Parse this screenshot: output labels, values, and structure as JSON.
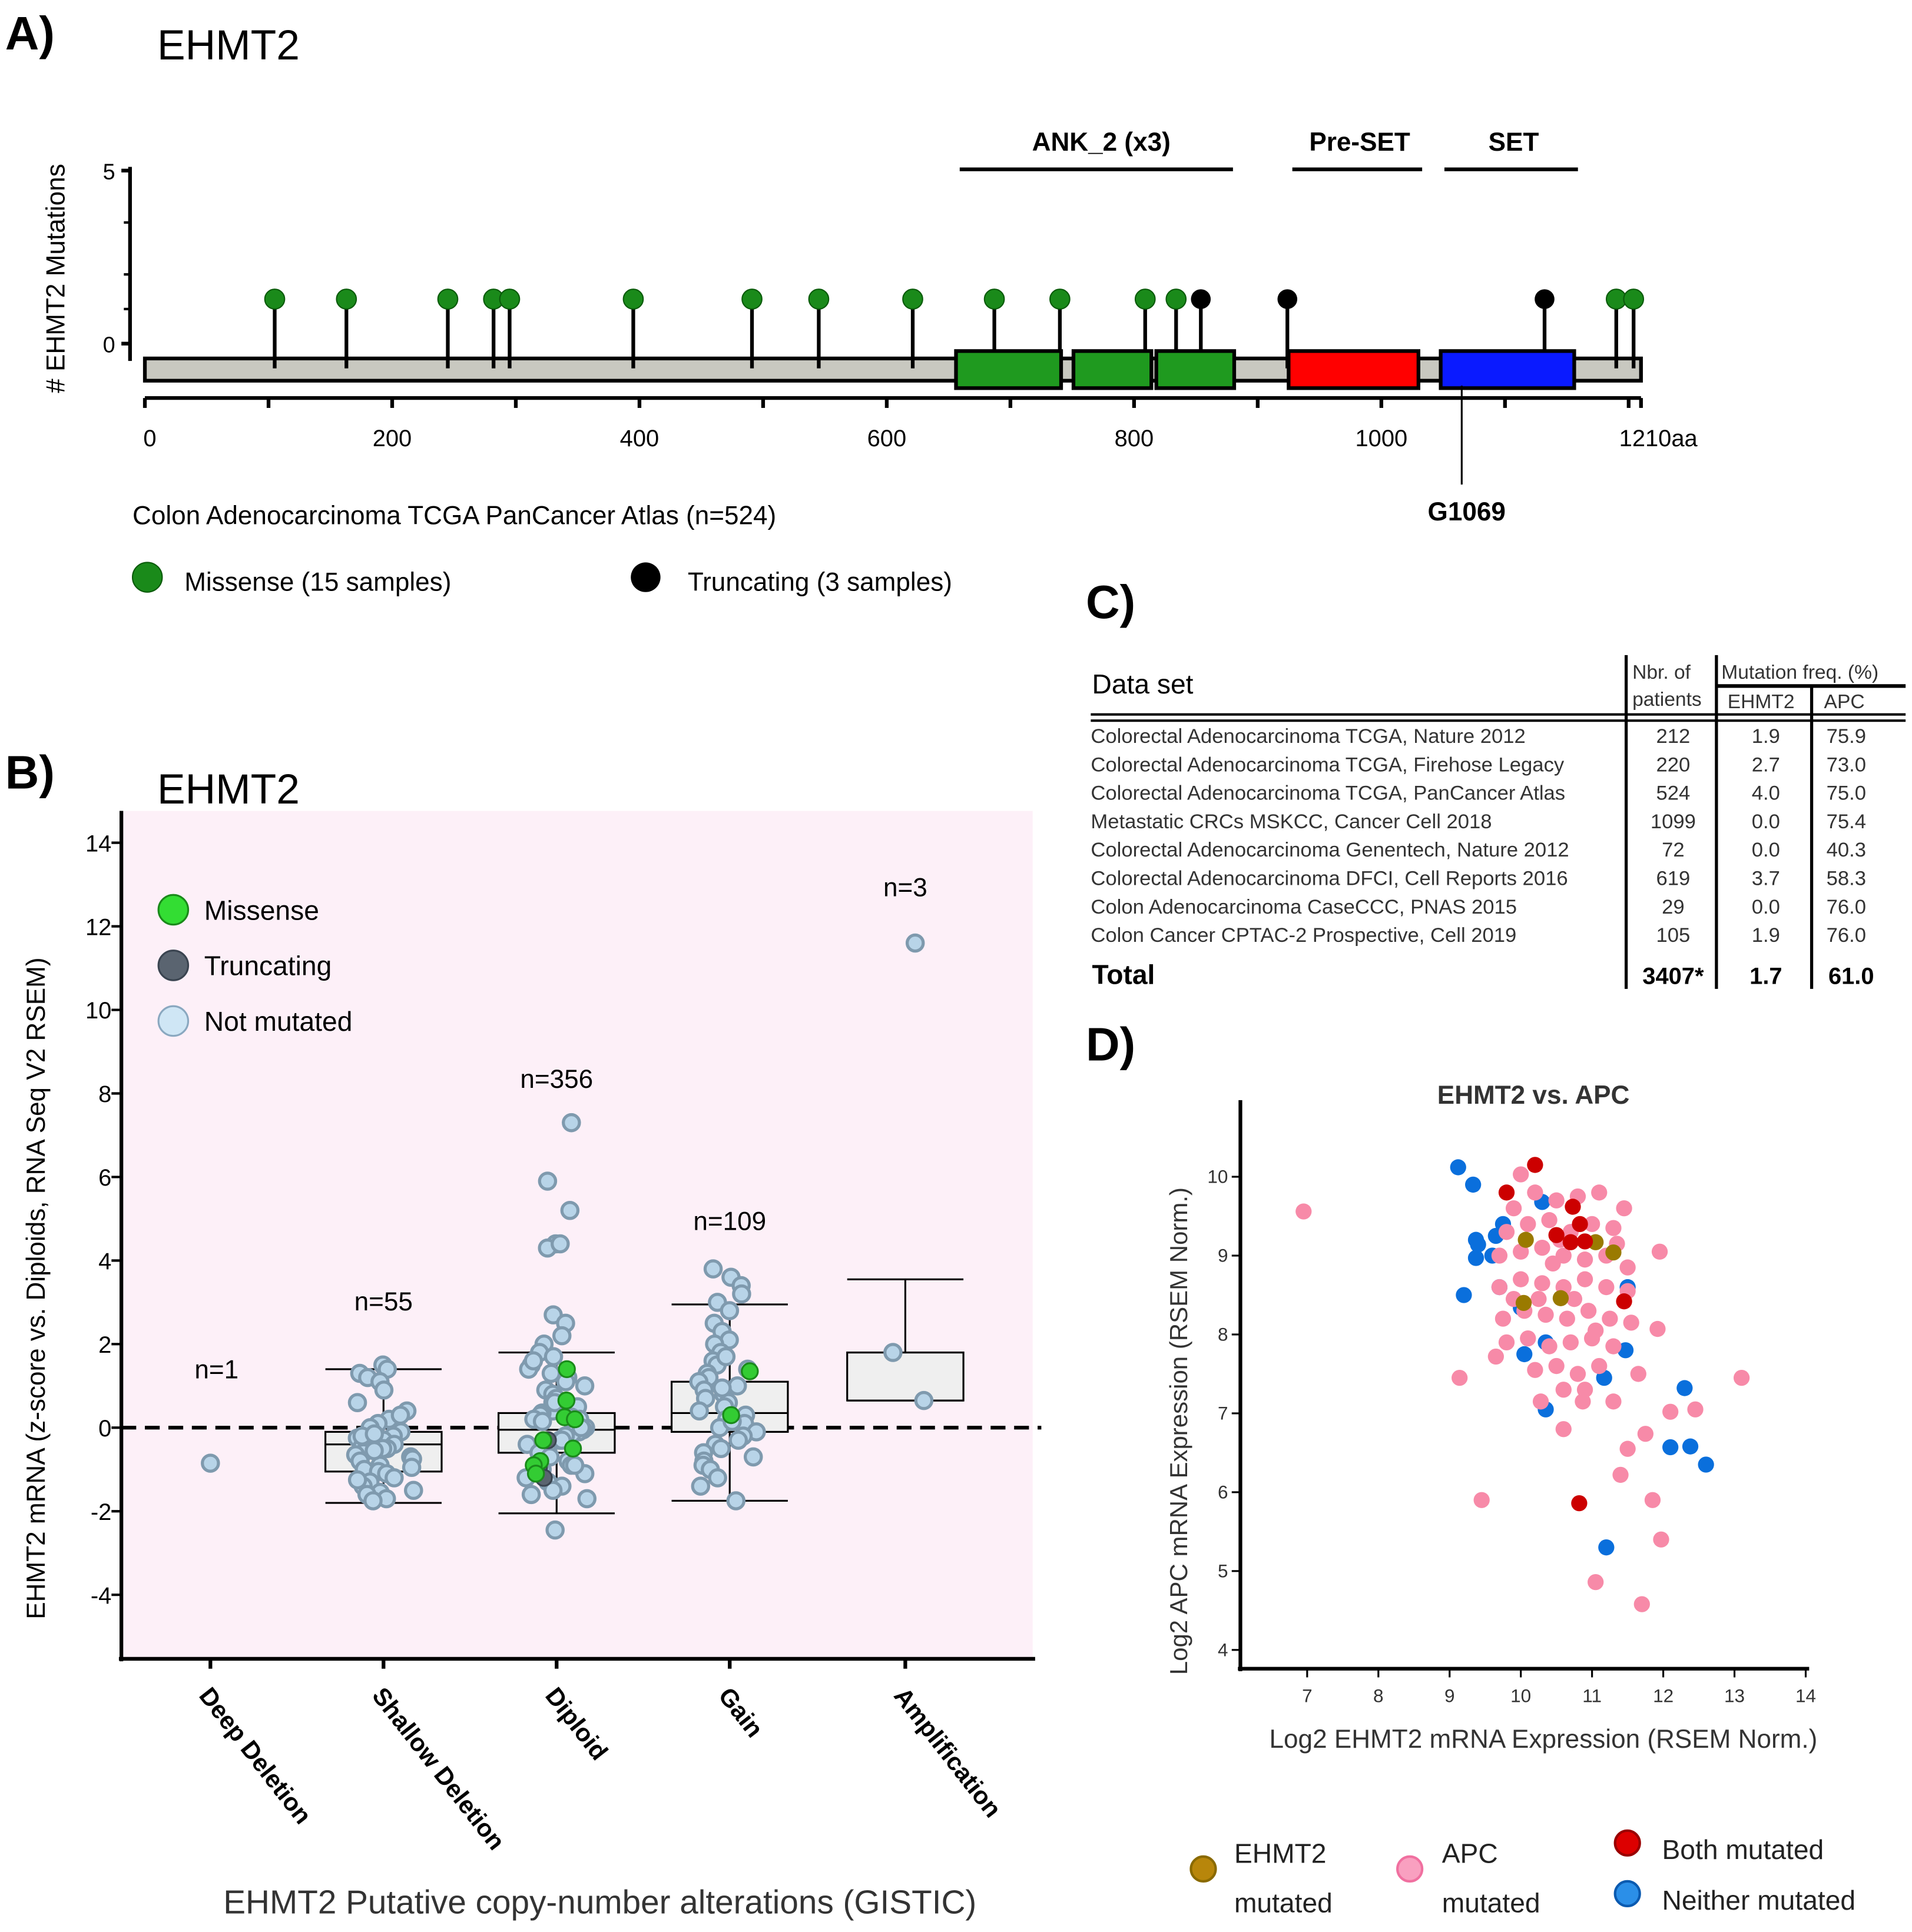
{
  "panelA": {
    "label": "A)",
    "title": "EHMT2",
    "ylabel": "# EHMT2 Mutations",
    "yticks": [
      "5",
      "0"
    ],
    "xticks": [
      0,
      200,
      400,
      600,
      800,
      1000
    ],
    "xend_label": "1210aa",
    "length": 1210,
    "domains": [
      {
        "name": "ANK_2 (x3)",
        "start": 656,
        "end": 881,
        "color": "#1f9a1f",
        "repeats": [
          [
            656,
            741
          ],
          [
            751,
            814
          ],
          [
            818,
            881
          ]
        ]
      },
      {
        "name": "Pre-SET",
        "start": 925,
        "end": 1030,
        "color": "#ff0000"
      },
      {
        "name": "SET",
        "start": 1048,
        "end": 1156,
        "color": "#0a1aff"
      }
    ],
    "missense_positions": [
      105,
      163,
      245,
      282,
      295,
      395,
      491,
      545,
      621,
      687,
      740,
      809,
      834,
      1190,
      1204
    ],
    "truncating_positions": [
      854,
      924,
      1132
    ],
    "marker": {
      "label": "G1069",
      "position": 1065
    },
    "study": "Colon Adenocarcinoma TCGA PanCancer Atlas (n=524)",
    "legend": [
      {
        "label": "Missense (15 samples)",
        "color": "#1a8a1a"
      },
      {
        "label": "Truncating (3 samples)",
        "color": "#000000"
      }
    ]
  },
  "chart_data": [
    {
      "type": "box",
      "panel": "B)",
      "title": "EHMT2",
      "ylabel": "EHMT2 mRNA (z-score vs. Diploids, RNA Seq V2 RSEM)",
      "xlabel": "EHMT2 Putative copy-number alterations (GISTIC)",
      "ylim": [
        -5.5,
        14.7
      ],
      "yticks": [
        14,
        12,
        10,
        8,
        6,
        4,
        2,
        0,
        -2,
        -4
      ],
      "legend": [
        {
          "label": "Missense",
          "color": "#33cc33"
        },
        {
          "label": "Truncating",
          "color": "#5a6470"
        },
        {
          "label": "Not mutated",
          "color": "#cfe6f5"
        }
      ],
      "categories": [
        {
          "name": "Deep Deletion",
          "n_label": "n=1",
          "box": null,
          "not_mutated": [
            -0.85
          ],
          "missense": [],
          "truncating": []
        },
        {
          "name": "Shallow Deletion",
          "n_label": "n=55",
          "box": {
            "q1": -1.05,
            "median": -0.4,
            "q3": -0.1,
            "lo": -1.8,
            "hi": 1.4
          },
          "not_mutated": [
            1.5,
            1.4,
            1.3,
            1.2,
            1.1,
            0.9,
            0.6,
            0.4,
            0.2,
            0.1,
            0,
            -0.1,
            -0.2,
            -0.25,
            -0.3,
            -0.35,
            -0.4,
            -0.45,
            -0.5,
            -0.5,
            -0.6,
            -0.65,
            -0.7,
            -0.75,
            -0.8,
            -0.9,
            -0.95,
            -1.0,
            -1.05,
            -1.1,
            -1.2,
            -1.3,
            -1.4,
            -1.5,
            -1.55,
            -1.6,
            -1.7,
            -1.75,
            -0.2,
            0.3,
            -0.15,
            -0.55,
            -1.25
          ],
          "missense": [],
          "truncating": []
        },
        {
          "name": "Diploid",
          "n_label": "n=356",
          "box": {
            "q1": -0.6,
            "median": -0.05,
            "q3": 0.35,
            "lo": -2.05,
            "hi": 1.8
          },
          "not_mutated": [
            7.3,
            5.9,
            5.2,
            4.4,
            4.3,
            4.4,
            2.7,
            2.5,
            2.2,
            2.0,
            1.8,
            1.7,
            1.5,
            1.4,
            1.3,
            1.2,
            1.1,
            1.0,
            0.9,
            0.8,
            0.7,
            0.6,
            0.5,
            0.45,
            0.4,
            0.35,
            0.3,
            0.25,
            0.2,
            0.15,
            0.1,
            0.05,
            0,
            -0.05,
            -0.1,
            -0.15,
            -0.2,
            -0.3,
            -0.4,
            -0.5,
            -0.55,
            -0.6,
            -0.7,
            -0.8,
            -0.9,
            -1.0,
            -1.1,
            -1.2,
            -1.3,
            -1.4,
            -1.5,
            -1.6,
            -1.7,
            -2.45,
            0.2,
            -0.3,
            0.6,
            1.6,
            -0.9,
            0.0
          ],
          "missense": [
            1.4,
            0.65,
            0.25,
            0.2,
            -0.3,
            -0.5,
            -0.8,
            -0.9,
            -1.1
          ],
          "truncating": [
            -0.3,
            -0.95,
            -1.2
          ]
        },
        {
          "name": "Gain",
          "n_label": "n=109",
          "box": {
            "q1": -0.1,
            "median": 0.35,
            "q3": 1.1,
            "lo": -1.75,
            "hi": 2.95
          },
          "not_mutated": [
            3.8,
            3.6,
            3.4,
            3.2,
            3.0,
            2.8,
            2.5,
            2.3,
            2.1,
            2.0,
            1.8,
            1.6,
            1.5,
            1.4,
            1.3,
            1.2,
            1.1,
            1.0,
            0.9,
            0.8,
            0.7,
            0.6,
            0.5,
            0.4,
            0.3,
            0.2,
            0.1,
            0,
            -0.1,
            -0.2,
            -0.3,
            -0.4,
            -0.5,
            -0.6,
            -0.7,
            -0.8,
            -0.9,
            -1.0,
            -1.2,
            -1.4,
            -1.75,
            1.7,
            0.95,
            0.15
          ],
          "missense": [
            1.35,
            0.3
          ],
          "truncating": []
        },
        {
          "name": "Amplification",
          "n_label": "n=3",
          "box": {
            "q1": 0.65,
            "median": 1.8,
            "q3": 1.8,
            "lo": 0.65,
            "hi": 3.55
          },
          "not_mutated": [
            11.6,
            1.8,
            0.65
          ],
          "missense": [],
          "truncating": []
        }
      ]
    },
    {
      "type": "scatter",
      "panel": "D)",
      "title": "EHMT2 vs. APC",
      "xlabel": "Log2 EHMT2 mRNA Expression (RSEM Norm.)",
      "ylabel": "Log2 APC mRNA Expression (RSEM Norm.)",
      "xlim": [
        6,
        14
      ],
      "ylim": [
        3.8,
        10.9
      ],
      "xticks": [
        7,
        8,
        9,
        10,
        11,
        12,
        13,
        14
      ],
      "yticks": [
        4,
        5,
        6,
        7,
        8,
        9,
        10
      ],
      "series": [
        {
          "name": "Neither mutated",
          "color": "#0a6fdc",
          "points": [
            [
              9.12,
              10.12
            ],
            [
              9.33,
              9.9
            ],
            [
              9.37,
              9.2
            ],
            [
              9.37,
              8.97
            ],
            [
              9.2,
              8.5
            ],
            [
              9.4,
              9.14
            ],
            [
              9.65,
              9.25
            ],
            [
              9.75,
              9.4
            ],
            [
              10.35,
              7.9
            ],
            [
              10.05,
              7.75
            ],
            [
              11.17,
              7.45
            ],
            [
              11.47,
              7.8
            ],
            [
              12.3,
              7.32
            ],
            [
              12.1,
              6.57
            ],
            [
              12.38,
              6.58
            ],
            [
              12.6,
              6.35
            ],
            [
              11.2,
              5.3
            ],
            [
              10.35,
              7.05
            ],
            [
              10.0,
              8.34
            ],
            [
              10.3,
              9.68
            ],
            [
              9.6,
              9.0
            ],
            [
              9.7,
              8.6
            ],
            [
              11.5,
              8.6
            ]
          ]
        },
        {
          "name": "APC mutated",
          "color": "#f78aa8",
          "points": [
            [
              6.95,
              9.56
            ],
            [
              9.14,
              7.45
            ],
            [
              9.45,
              5.9
            ],
            [
              11.05,
              4.86
            ],
            [
              11.7,
              4.58
            ],
            [
              11.97,
              5.4
            ],
            [
              11.85,
              5.9
            ],
            [
              13.1,
              7.45
            ],
            [
              12.45,
              7.05
            ],
            [
              12.1,
              7.02
            ],
            [
              11.4,
              6.22
            ],
            [
              11.5,
              6.55
            ],
            [
              11.75,
              6.74
            ],
            [
              11.92,
              8.07
            ],
            [
              11.95,
              9.05
            ],
            [
              10.6,
              6.8
            ],
            [
              10.28,
              7.15
            ],
            [
              10.87,
              7.15
            ],
            [
              11.3,
              7.15
            ],
            [
              11.65,
              7.5
            ],
            [
              9.65,
              7.72
            ],
            [
              10.0,
              10.03
            ],
            [
              11.45,
              9.6
            ],
            [
              9.9,
              9.6
            ],
            [
              10.2,
              9.8
            ],
            [
              10.5,
              9.7
            ],
            [
              10.8,
              9.75
            ],
            [
              11.1,
              9.8
            ],
            [
              9.8,
              9.3
            ],
            [
              10.1,
              9.4
            ],
            [
              10.4,
              9.45
            ],
            [
              10.7,
              9.3
            ],
            [
              11.0,
              9.4
            ],
            [
              11.3,
              9.35
            ],
            [
              9.7,
              9.0
            ],
            [
              10.0,
              9.05
            ],
            [
              10.3,
              9.1
            ],
            [
              10.6,
              9.0
            ],
            [
              10.9,
              8.95
            ],
            [
              11.2,
              9.0
            ],
            [
              11.5,
              8.85
            ],
            [
              9.7,
              8.6
            ],
            [
              10.0,
              8.7
            ],
            [
              10.3,
              8.65
            ],
            [
              10.6,
              8.6
            ],
            [
              10.9,
              8.7
            ],
            [
              11.2,
              8.6
            ],
            [
              11.5,
              8.55
            ],
            [
              9.75,
              8.2
            ],
            [
              10.05,
              8.3
            ],
            [
              10.35,
              8.25
            ],
            [
              10.65,
              8.2
            ],
            [
              10.95,
              8.3
            ],
            [
              11.25,
              8.2
            ],
            [
              11.55,
              8.15
            ],
            [
              9.8,
              7.9
            ],
            [
              10.1,
              7.95
            ],
            [
              10.4,
              7.85
            ],
            [
              10.7,
              7.9
            ],
            [
              11.0,
              7.95
            ],
            [
              11.3,
              7.85
            ],
            [
              10.2,
              7.55
            ],
            [
              10.5,
              7.6
            ],
            [
              10.8,
              7.5
            ],
            [
              11.1,
              7.6
            ],
            [
              10.6,
              7.3
            ],
            [
              10.9,
              7.3
            ],
            [
              10.45,
              8.9
            ],
            [
              10.75,
              8.45
            ],
            [
              11.05,
              8.05
            ],
            [
              10.25,
              8.45
            ],
            [
              10.55,
              9.2
            ],
            [
              11.35,
              9.15
            ],
            [
              9.9,
              8.45
            ]
          ]
        },
        {
          "name": "EHMT2 mutated",
          "color": "#9a7a00",
          "points": [
            [
              10.07,
              9.2
            ],
            [
              11.05,
              9.17
            ],
            [
              11.3,
              9.04
            ],
            [
              10.04,
              8.4
            ],
            [
              10.56,
              8.46
            ]
          ]
        },
        {
          "name": "Both mutated",
          "color": "#cc0000",
          "points": [
            [
              10.2,
              10.15
            ],
            [
              9.8,
              9.8
            ],
            [
              10.73,
              9.62
            ],
            [
              10.83,
              9.4
            ],
            [
              10.5,
              9.26
            ],
            [
              10.7,
              9.17
            ],
            [
              10.9,
              9.18
            ],
            [
              11.45,
              8.42
            ],
            [
              10.82,
              5.86
            ]
          ]
        }
      ],
      "legend": [
        {
          "line1": "EHMT2",
          "line2": "mutated",
          "color": "#b8860b"
        },
        {
          "line1": "APC",
          "line2": "mutated",
          "color": "#f9a0c0"
        },
        {
          "line1": "Both mutated",
          "line2": "",
          "color": "#dd0000"
        },
        {
          "line1": "Neither mutated",
          "line2": "",
          "color": "#2b8fe8"
        }
      ]
    }
  ],
  "panelB": {
    "label": "B)"
  },
  "panelD": {
    "label": "D)"
  },
  "panelC": {
    "label": "C)",
    "headers": {
      "dataset": "Data set",
      "patients1": "Nbr. of",
      "patients2": "patients",
      "freq": "Mutation freq. (%)",
      "ehmt2": "EHMT2",
      "apc": "APC"
    },
    "rows": [
      [
        "Colorectal Adenocarcinoma TCGA, Nature 2012",
        "212",
        "1.9",
        "75.9"
      ],
      [
        "Colorectal Adenocarcinoma TCGA, Firehose Legacy",
        "220",
        "2.7",
        "73.0"
      ],
      [
        "Colorectal Adenocarcinoma TCGA, PanCancer Atlas",
        "524",
        "4.0",
        "75.0"
      ],
      [
        "Metastatic CRCs MSKCC, Cancer Cell 2018",
        "1099",
        "0.0",
        "75.4"
      ],
      [
        "Colorectal Adenocarcinoma Genentech, Nature 2012",
        "72",
        "0.0",
        "40.3"
      ],
      [
        "Colorectal Adenocarcinoma DFCI, Cell Reports 2016",
        "619",
        "3.7",
        "58.3"
      ],
      [
        "Colon Adenocarcinoma CaseCCC, PNAS 2015",
        "29",
        "0.0",
        "76.0"
      ],
      [
        "Colon Cancer CPTAC-2 Prospective, Cell 2019",
        "105",
        "1.9",
        "76.0"
      ]
    ],
    "total": [
      "Total",
      "3407*",
      "1.7",
      "61.0"
    ]
  }
}
